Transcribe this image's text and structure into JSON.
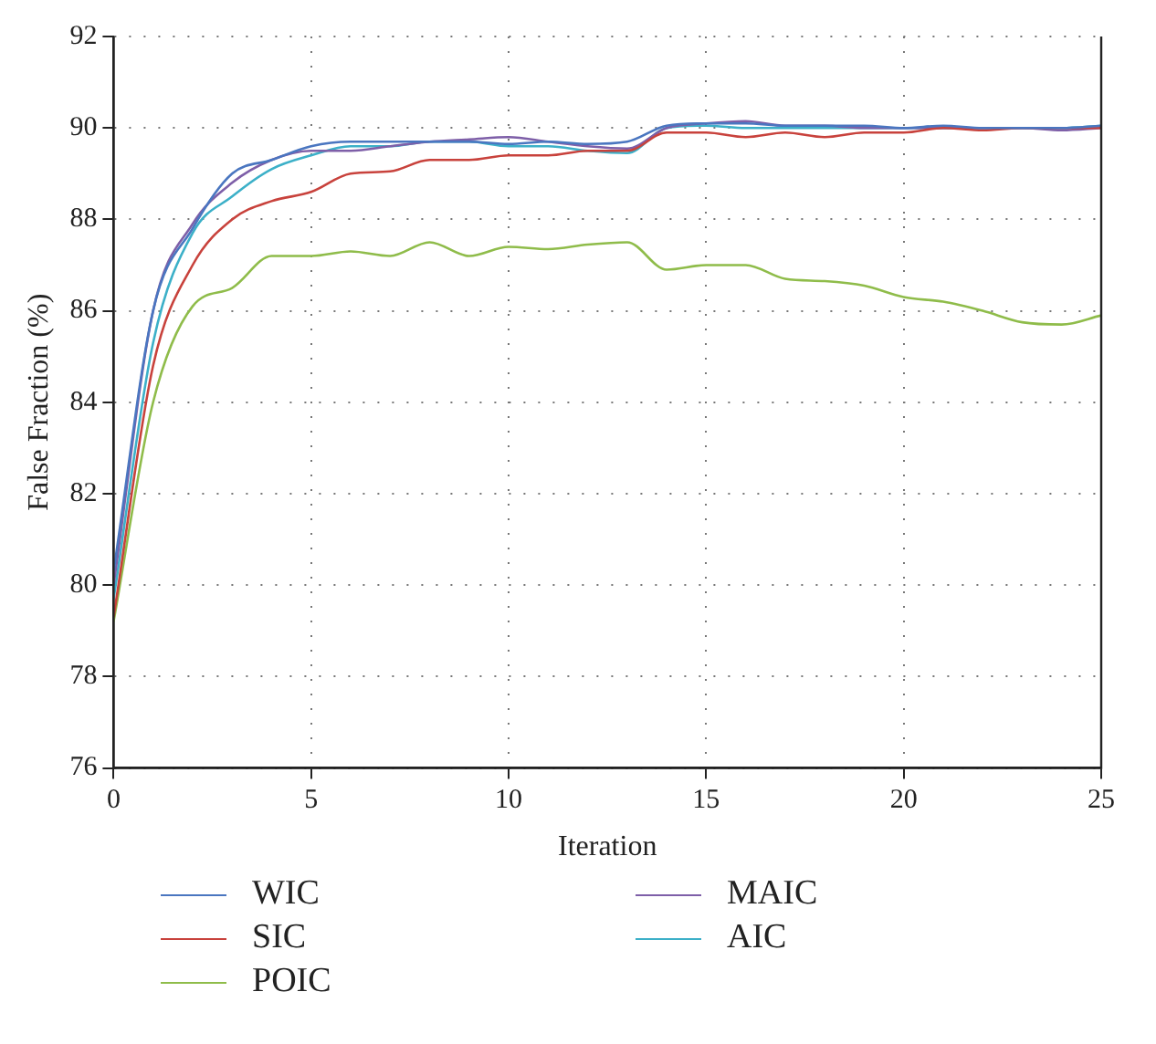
{
  "chart_data": {
    "type": "line",
    "xlabel": "Iteration",
    "ylabel": "False Fraction (%)",
    "x": [
      0,
      1,
      2,
      3,
      4,
      5,
      6,
      7,
      8,
      9,
      10,
      11,
      12,
      13,
      14,
      15,
      16,
      17,
      18,
      19,
      20,
      21,
      22,
      23,
      24,
      25
    ],
    "xlim": [
      0,
      25
    ],
    "xticks": [
      0,
      5,
      10,
      15,
      20,
      25
    ],
    "ylim": [
      76,
      92
    ],
    "yticks": [
      76,
      78,
      80,
      82,
      84,
      86,
      88,
      90,
      92
    ],
    "grid": true,
    "legend": "bottom",
    "marker": "none",
    "line_style": "solid",
    "series": [
      {
        "name": "WIC",
        "color": "#4a76c0",
        "values": [
          80.3,
          86.0,
          87.8,
          89.0,
          89.3,
          89.6,
          89.7,
          89.7,
          89.7,
          89.7,
          89.65,
          89.7,
          89.65,
          89.7,
          90.05,
          90.1,
          90.1,
          90.05,
          90.05,
          90.05,
          90.0,
          90.05,
          90.0,
          90.0,
          90.0,
          90.05
        ]
      },
      {
        "name": "SIC",
        "color": "#c8423c",
        "values": [
          79.3,
          84.8,
          87.0,
          88.0,
          88.4,
          88.6,
          89.0,
          89.05,
          89.3,
          89.3,
          89.4,
          89.4,
          89.5,
          89.5,
          89.9,
          89.9,
          89.8,
          89.9,
          89.8,
          89.9,
          89.9,
          90.0,
          89.95,
          90.0,
          90.0,
          90.0
        ]
      },
      {
        "name": "POIC",
        "color": "#8fbc4a",
        "values": [
          79.2,
          84.0,
          86.1,
          86.5,
          87.2,
          87.2,
          87.3,
          87.2,
          87.5,
          87.2,
          87.4,
          87.35,
          87.45,
          87.5,
          86.9,
          87.0,
          87.0,
          86.7,
          86.65,
          86.55,
          86.3,
          86.2,
          86.0,
          85.75,
          85.7,
          85.9
        ]
      },
      {
        "name": "MAIC",
        "color": "#7e5fa8",
        "values": [
          80.0,
          86.0,
          87.9,
          88.8,
          89.3,
          89.5,
          89.5,
          89.6,
          89.7,
          89.75,
          89.8,
          89.7,
          89.6,
          89.55,
          90.0,
          90.1,
          90.15,
          90.05,
          90.05,
          90.0,
          90.0,
          90.0,
          90.0,
          90.0,
          89.95,
          90.0
        ]
      },
      {
        "name": "AIC",
        "color": "#3cb0c8",
        "values": [
          79.7,
          85.3,
          87.7,
          88.5,
          89.1,
          89.4,
          89.6,
          89.6,
          89.7,
          89.7,
          89.6,
          89.6,
          89.5,
          89.45,
          90.0,
          90.05,
          90.0,
          90.0,
          90.0,
          90.0,
          90.0,
          90.0,
          90.0,
          90.0,
          90.0,
          90.05
        ]
      }
    ]
  }
}
